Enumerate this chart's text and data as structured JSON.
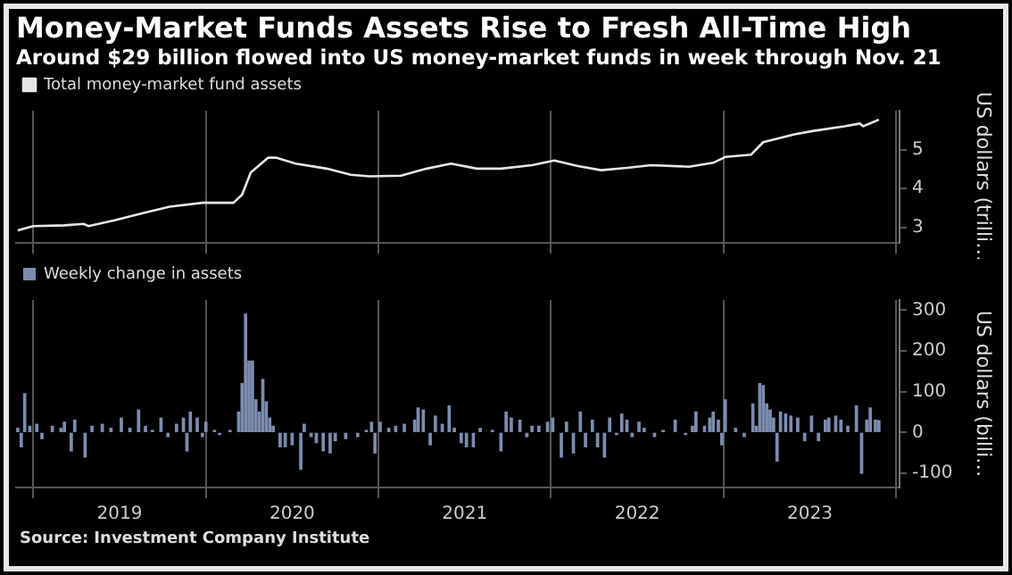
{
  "chart_data": [
    {
      "type": "line",
      "title": "Money-Market Funds Assets Rise to Fresh All-Time High",
      "subtitle": "Around $29 billion flowed into US money-market funds in week through Nov. 21",
      "ylabel": "US dollars (trilli…",
      "legend": "top left",
      "grid": "x",
      "tick_labels": "y",
      "xlim": [
        2018.9,
        2024.02
      ],
      "xticks": [
        {
          "value": 2019,
          "label": null
        },
        {
          "value": 2020,
          "label": null
        },
        {
          "value": 2021,
          "label": null
        },
        {
          "value": 2022,
          "label": null
        },
        {
          "value": 2023,
          "label": null
        },
        {
          "value": 2024,
          "label": null
        }
      ],
      "ylim": [
        2.6,
        6.0
      ],
      "yticks": [
        3,
        4,
        5
      ],
      "series": [
        {
          "name": "Total money-market fund assets",
          "color": "#e6e6e6",
          "x": [
            2018.91,
            2019.0,
            2019.18,
            2019.29,
            2019.32,
            2019.47,
            2019.65,
            2019.79,
            2019.98,
            2020.16,
            2020.21,
            2020.26,
            2020.36,
            2020.41,
            2020.52,
            2020.7,
            2020.84,
            2020.95,
            2021.13,
            2021.28,
            2021.42,
            2021.57,
            2021.71,
            2021.89,
            2022.02,
            2022.15,
            2022.29,
            2022.44,
            2022.58,
            2022.8,
            2022.94,
            2023.01,
            2023.16,
            2023.23,
            2023.41,
            2023.52,
            2023.7,
            2023.79,
            2023.81,
            2023.9
          ],
          "values": [
            2.92,
            3.03,
            3.05,
            3.09,
            3.03,
            3.18,
            3.38,
            3.53,
            3.63,
            3.63,
            3.84,
            4.41,
            4.79,
            4.79,
            4.64,
            4.51,
            4.35,
            4.31,
            4.33,
            4.51,
            4.64,
            4.51,
            4.51,
            4.6,
            4.72,
            4.58,
            4.47,
            4.53,
            4.6,
            4.56,
            4.66,
            4.81,
            4.87,
            5.19,
            5.39,
            5.48,
            5.6,
            5.67,
            5.6,
            5.77
          ]
        }
      ]
    },
    {
      "type": "bar",
      "ylabel": "US dollars (billi…",
      "legend": "top left",
      "grid": "x",
      "annotations": [
        "Source: Investment Company Institute"
      ],
      "xlim": [
        2018.9,
        2024.02
      ],
      "xticks": [
        {
          "value": 2019,
          "label": null
        },
        {
          "value": 2019.5,
          "label": "2019"
        },
        {
          "value": 2020,
          "label": null
        },
        {
          "value": 2020.5,
          "label": "2020"
        },
        {
          "value": 2021,
          "label": null
        },
        {
          "value": 2021.5,
          "label": "2021"
        },
        {
          "value": 2022,
          "label": null
        },
        {
          "value": 2022.5,
          "label": "2022"
        },
        {
          "value": 2023,
          "label": null
        },
        {
          "value": 2023.5,
          "label": "2023"
        },
        {
          "value": 2024,
          "label": null
        }
      ],
      "ylim": [
        -135,
        325
      ],
      "yticks": [
        -100,
        0,
        100,
        200,
        300
      ],
      "series": [
        {
          "name": "Weekly change in assets",
          "color": "#7c8cae",
          "x": [
            2018.91,
            2018.93,
            2018.95,
            2018.98,
            2019.02,
            2019.05,
            2019.11,
            2019.16,
            2019.18,
            2019.22,
            2019.24,
            2019.3,
            2019.34,
            2019.4,
            2019.45,
            2019.51,
            2019.56,
            2019.61,
            2019.65,
            2019.69,
            2019.74,
            2019.78,
            2019.83,
            2019.87,
            2019.89,
            2019.91,
            2019.95,
            2019.98,
            2020.0,
            2020.05,
            2020.08,
            2020.14,
            2020.19,
            2020.21,
            2020.23,
            2020.25,
            2020.27,
            2020.29,
            2020.31,
            2020.33,
            2020.35,
            2020.37,
            2020.39,
            2020.43,
            2020.46,
            2020.5,
            2020.55,
            2020.57,
            2020.61,
            2020.64,
            2020.68,
            2020.72,
            2020.75,
            2020.81,
            2020.88,
            2020.93,
            2020.96,
            2020.98,
            2021.01,
            2021.06,
            2021.1,
            2021.15,
            2021.21,
            2021.23,
            2021.26,
            2021.3,
            2021.33,
            2021.37,
            2021.41,
            2021.44,
            2021.48,
            2021.51,
            2021.55,
            2021.59,
            2021.66,
            2021.71,
            2021.74,
            2021.77,
            2021.82,
            2021.86,
            2021.89,
            2021.93,
            2021.98,
            2022.01,
            2022.06,
            2022.09,
            2022.13,
            2022.17,
            2022.2,
            2022.24,
            2022.27,
            2022.31,
            2022.34,
            2022.38,
            2022.41,
            2022.44,
            2022.47,
            2022.51,
            2022.54,
            2022.6,
            2022.65,
            2022.72,
            2022.78,
            2022.82,
            2022.84,
            2022.89,
            2022.92,
            2022.94,
            2022.97,
            2022.99,
            2023.01,
            2023.07,
            2023.12,
            2023.17,
            2023.19,
            2023.21,
            2023.23,
            2023.25,
            2023.27,
            2023.29,
            2023.31,
            2023.33,
            2023.36,
            2023.39,
            2023.43,
            2023.47,
            2023.51,
            2023.55,
            2023.59,
            2023.61,
            2023.65,
            2023.68,
            2023.72,
            2023.77,
            2023.8,
            2023.83,
            2023.85,
            2023.88,
            2023.9
          ],
          "values": [
            10,
            -35,
            95,
            15,
            20,
            -15,
            15,
            10,
            25,
            -45,
            30,
            -60,
            15,
            20,
            10,
            35,
            10,
            55,
            15,
            5,
            35,
            -10,
            20,
            35,
            -45,
            50,
            35,
            -10,
            25,
            5,
            -5,
            5,
            50,
            120,
            290,
            175,
            175,
            80,
            50,
            130,
            75,
            35,
            15,
            -35,
            -35,
            -30,
            -90,
            20,
            -10,
            -25,
            -45,
            -50,
            -20,
            -15,
            -10,
            5,
            25,
            -50,
            25,
            10,
            15,
            20,
            30,
            60,
            55,
            -30,
            40,
            20,
            65,
            10,
            -25,
            -35,
            -35,
            10,
            5,
            -45,
            50,
            35,
            30,
            -10,
            15,
            15,
            25,
            35,
            -60,
            25,
            -50,
            50,
            -35,
            30,
            -35,
            -60,
            35,
            -5,
            45,
            30,
            -10,
            25,
            10,
            -10,
            5,
            30,
            -5,
            15,
            50,
            15,
            35,
            50,
            30,
            -30,
            80,
            10,
            -10,
            70,
            15,
            120,
            115,
            70,
            55,
            35,
            -70,
            50,
            45,
            40,
            35,
            -20,
            40,
            -20,
            30,
            35,
            40,
            30,
            15,
            65,
            -100,
            30,
            60,
            30,
            29
          ]
        }
      ]
    }
  ]
}
